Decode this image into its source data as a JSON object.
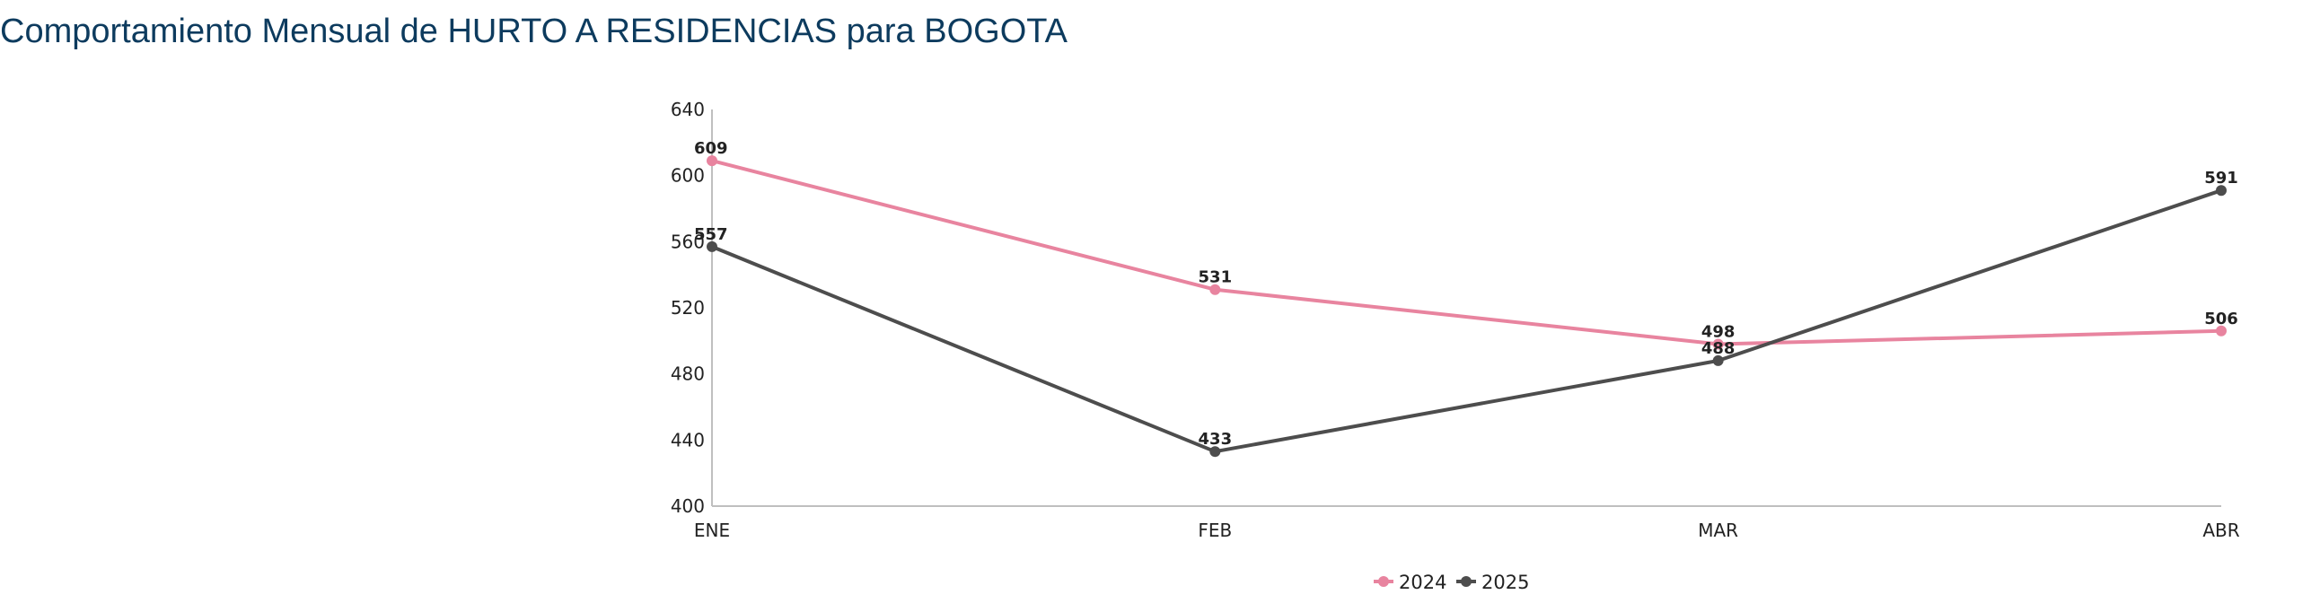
{
  "title": "Comportamiento Mensual de HURTO A RESIDENCIAS para BOGOTA",
  "chart_data": {
    "type": "line",
    "title": "Comportamiento Mensual de HURTO A RESIDENCIAS para BOGOTA",
    "categories": [
      "ENE",
      "FEB",
      "MAR",
      "ABR"
    ],
    "series": [
      {
        "name": "2024",
        "color": "#e8849f",
        "values": [
          609,
          531,
          498,
          506
        ]
      },
      {
        "name": "2025",
        "color": "#4d4d4d",
        "values": [
          557,
          433,
          488,
          591
        ]
      }
    ],
    "ylim": [
      400,
      640
    ],
    "yticks": [
      400,
      440,
      480,
      520,
      560,
      600,
      640
    ],
    "xlabel": "",
    "ylabel": "",
    "grid": false,
    "legend": "bottom-center",
    "data_labels": true
  }
}
